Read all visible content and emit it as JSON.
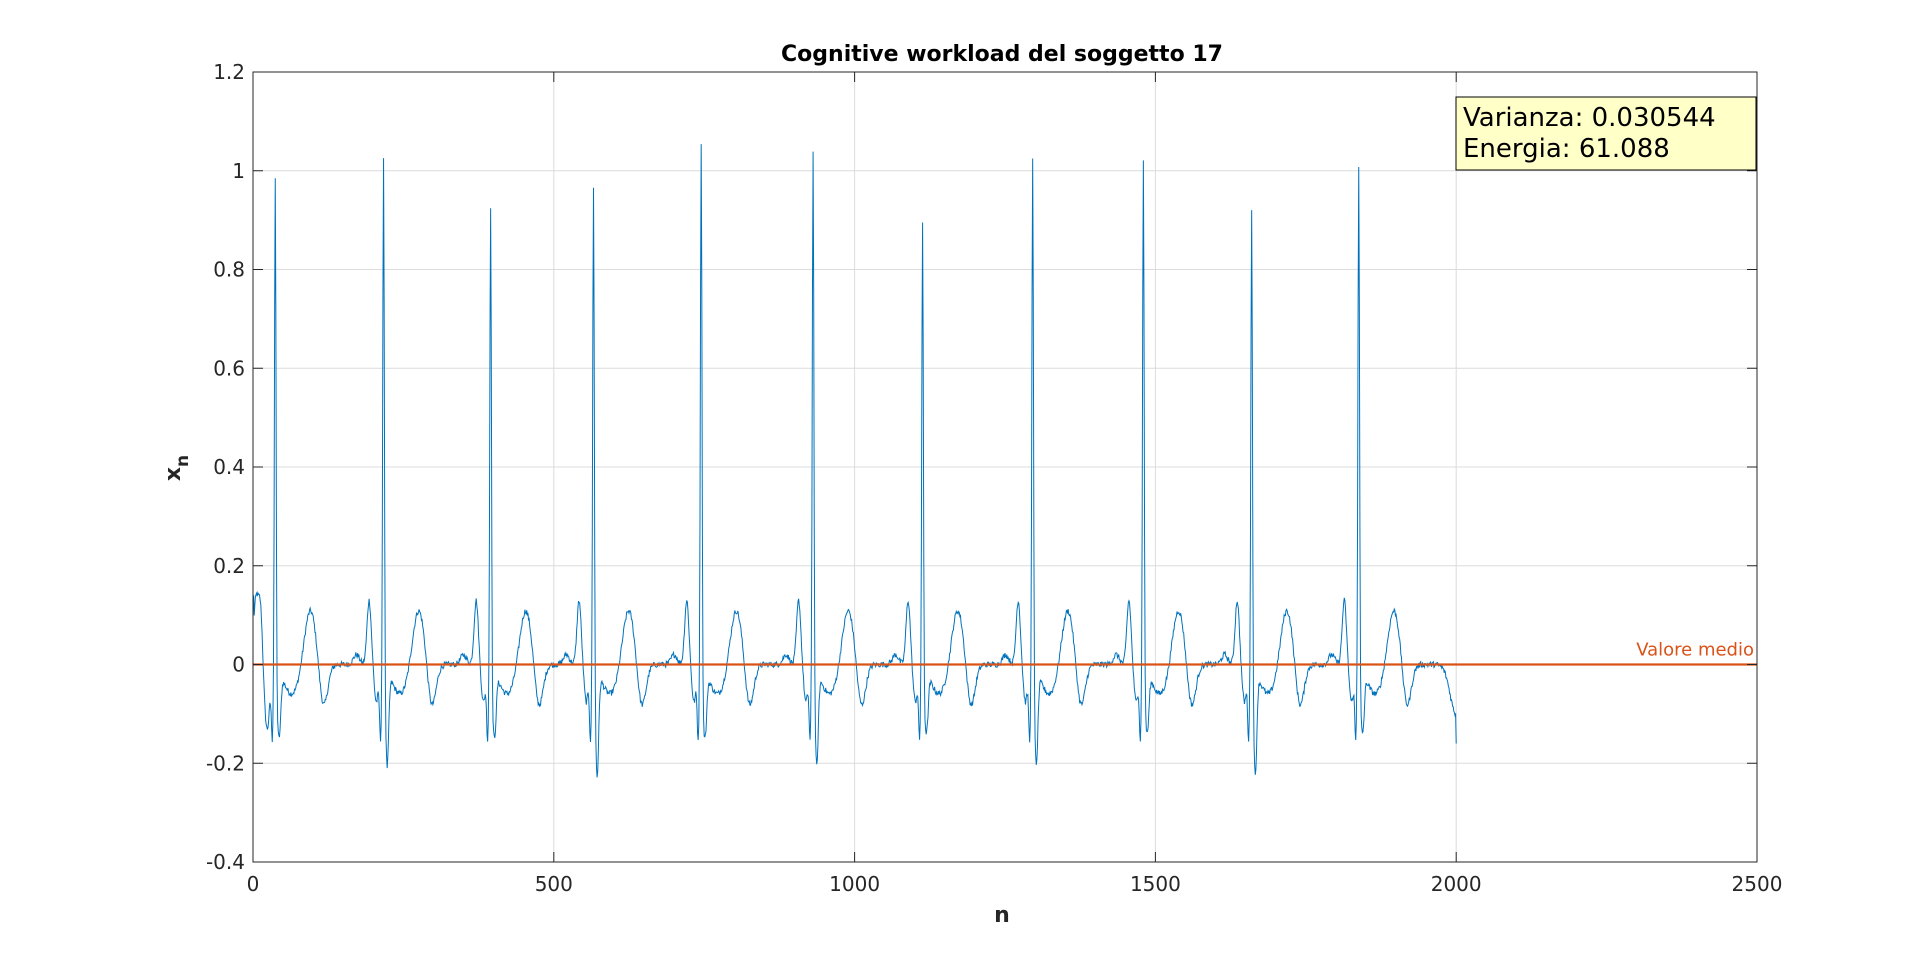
{
  "chart_data": {
    "type": "line",
    "title": "Cognitive workload del soggetto 17",
    "xlabel": "n",
    "ylabel": "x",
    "ylabel_subscript": "n",
    "xlim": [
      0,
      2500
    ],
    "ylim": [
      -0.4,
      1.2
    ],
    "xticks": [
      0,
      500,
      1000,
      1500,
      2000,
      2500
    ],
    "xtick_labels": [
      "0",
      "500",
      "1000",
      "1500",
      "2000",
      "2500"
    ],
    "yticks": [
      -0.4,
      -0.2,
      0,
      0.2,
      0.4,
      0.6,
      0.8,
      1,
      1.2
    ],
    "ytick_labels": [
      "-0.4",
      "-0.2",
      "0",
      "0.2",
      "0.4",
      "0.6",
      "0.8",
      "1",
      "1.2"
    ],
    "grid": true,
    "series": [
      {
        "color": "#0072BD",
        "n_samples": 2000,
        "waveform": "quasi-periodic spiky signal (ECG-like), 11 main beats",
        "peak_n": [
          37,
          217,
          395,
          566,
          745,
          931,
          1113,
          1296,
          1480,
          1660,
          1838
        ],
        "peak_values": [
          0.95,
          0.99,
          0.9,
          0.94,
          1.03,
          1.01,
          0.86,
          0.99,
          0.99,
          0.89,
          0.98
        ],
        "trough_values": [
          -0.27,
          -0.25,
          -0.27,
          -0.27,
          -0.27,
          -0.25,
          -0.26,
          -0.25,
          -0.26,
          -0.27,
          -0.26
        ],
        "start_value": 0.14,
        "end_value": -0.16
      },
      {
        "name": "Valore medio",
        "color": "#D95319",
        "type": "hline",
        "y": 0
      }
    ],
    "annotation": {
      "lines": [
        "Varianza: 0.030544",
        "Energia: 61.088"
      ],
      "background": "#FFFFC8"
    }
  }
}
